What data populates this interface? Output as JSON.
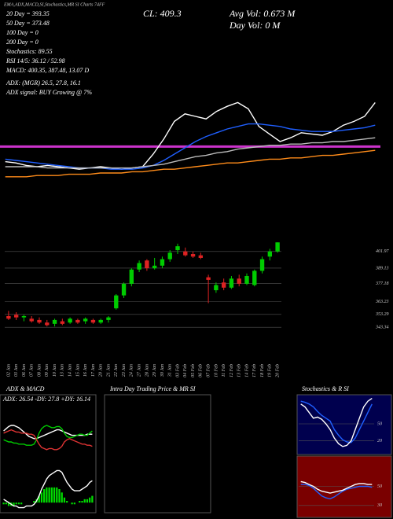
{
  "header": {
    "title_strip": "EMA,ADX,MACD,SI,Stochastics,MR SI Charts 74FF",
    "ema20": "20 Day = 393.35",
    "ema50": "50 Day = 373.48",
    "ema100": "100 Day = 0",
    "ema200": "200 Day = 0",
    "stochastics": "Stochastics: 89.55",
    "rsi": "RSI 14/5: 36.12 / 52.98",
    "macd": "MACD: 400.35, 387.48, 13.07 D",
    "adx": "ADX: (MGR) 26.5, 27.8, 16.1",
    "adx_signal": "ADX signal: BUY Growing @ 7%",
    "close": "CL: 409.3",
    "avg_vol": "Avg Vol: 0.673 M",
    "day_vol": "Day Vol: 0 M"
  },
  "panels": {
    "adx_macd": "ADX & MACD",
    "intraday": "Intra Day Trading Price & MR SI",
    "stoch_rsi": "Stochastics & R SI",
    "adx_values": "ADX: 26.54 -DY: 27.8 +DY: 16.14"
  },
  "chart_data": [
    {
      "type": "line",
      "ylim": [
        0,
        100
      ],
      "level": {
        "value": 46,
        "color": "#cc33cc"
      },
      "series": [
        {
          "color": "#ffffff",
          "values": [
            34,
            33,
            31,
            30,
            31,
            30,
            29,
            28,
            29,
            30,
            29,
            28,
            29,
            30,
            40,
            52,
            66,
            72,
            70,
            68,
            74,
            78,
            81,
            76,
            62,
            56,
            50,
            53,
            57,
            56,
            55,
            58,
            63,
            66,
            70,
            81
          ]
        },
        {
          "color": "#1f5fff",
          "values": [
            36,
            35,
            34,
            33,
            32,
            31,
            30,
            29,
            29,
            29,
            28,
            28,
            28,
            29,
            31,
            35,
            40,
            45,
            50,
            54,
            57,
            60,
            62,
            64,
            64,
            63,
            62,
            60,
            59,
            58,
            58,
            58,
            59,
            60,
            61,
            63
          ]
        },
        {
          "color": "#bbbbbb",
          "values": [
            30,
            30,
            30,
            30,
            29,
            29,
            29,
            29,
            29,
            29,
            29,
            29,
            29,
            30,
            31,
            32,
            34,
            36,
            38,
            39,
            41,
            42,
            44,
            45,
            46,
            47,
            47,
            48,
            48,
            49,
            49,
            50,
            50,
            51,
            52,
            53
          ]
        },
        {
          "color": "#ff8c1a",
          "values": [
            22,
            22,
            22,
            23,
            23,
            23,
            24,
            24,
            24,
            25,
            25,
            25,
            26,
            26,
            27,
            28,
            28,
            29,
            30,
            31,
            32,
            33,
            33,
            34,
            35,
            36,
            36,
            37,
            37,
            38,
            39,
            39,
            40,
            41,
            42,
            43
          ]
        }
      ]
    },
    {
      "type": "candlestick",
      "ylim": [
        338,
        414
      ],
      "up_color": "#00cc00",
      "down_color": "#dd2222",
      "yticks": [
        401.97,
        389.13,
        377.18,
        363.23,
        353.29,
        343.34
      ],
      "categories": [
        "02 Jan",
        "03 Jan",
        "06 Jan",
        "07 Jan",
        "08 Jan",
        "09 Jan",
        "10 Jan",
        "13 Jan",
        "14 Jan",
        "15 Jan",
        "16 Jan",
        "17 Jan",
        "20 Jan",
        "21 Jan",
        "22 Jan",
        "23 Jan",
        "24 Jan",
        "27 Jan",
        "28 Jan",
        "29 Jan",
        "30 Jan",
        "31 Jan",
        "03 Feb",
        "04 Feb",
        "05 Feb",
        "06 Feb",
        "07 Feb",
        "10 Feb",
        "11 Feb",
        "12 Feb",
        "13 Feb",
        "14 Feb",
        "17 Feb",
        "18 Feb",
        "19 Feb",
        "20 Feb"
      ],
      "open": [
        352,
        353,
        351,
        350,
        349,
        347,
        346,
        348,
        347,
        349,
        348,
        349,
        347,
        349,
        358,
        368,
        377,
        388,
        395,
        389,
        391,
        396,
        403,
        402,
        400,
        399,
        382,
        372,
        378,
        374,
        381,
        377,
        376,
        387,
        398,
        402
      ],
      "high": [
        356,
        355,
        353,
        352,
        351,
        349,
        350,
        350,
        351,
        350,
        351,
        350,
        350,
        352,
        369,
        378,
        389,
        395,
        396,
        397,
        398,
        403,
        408,
        405,
        402,
        401,
        384,
        378,
        381,
        383,
        384,
        385,
        388,
        398,
        404,
        409
      ],
      "low": [
        349,
        349,
        348,
        347,
        346,
        344,
        344,
        345,
        346,
        346,
        346,
        346,
        346,
        347,
        357,
        366,
        375,
        386,
        387,
        388,
        389,
        394,
        400,
        398,
        397,
        396,
        362,
        370,
        372,
        373,
        375,
        376,
        375,
        385,
        395,
        401
      ],
      "close": [
        350,
        351,
        352,
        348,
        347,
        345,
        349,
        346,
        350,
        347,
        350,
        347,
        349,
        351,
        368,
        377,
        388,
        393,
        389,
        391,
        396,
        401,
        406,
        399,
        398,
        397,
        380,
        376,
        374,
        381,
        377,
        383,
        387,
        396,
        402,
        409
      ]
    },
    {
      "type": "line",
      "ylim": [
        0,
        50
      ],
      "series": [
        {
          "color": "#ffffff",
          "values": [
            30,
            32,
            34,
            35,
            35,
            34,
            33,
            31,
            29,
            27,
            25,
            24,
            23,
            23,
            24,
            25,
            26,
            27,
            28,
            29,
            30,
            31,
            31,
            30,
            29,
            28,
            27,
            26,
            26,
            26,
            26,
            26,
            26,
            27,
            27,
            27
          ]
        },
        {
          "color": "#00cc00",
          "values": [
            22,
            21,
            20,
            20,
            19,
            19,
            18,
            18,
            18,
            17,
            17,
            17,
            18,
            22,
            28,
            32,
            34,
            35,
            34,
            33,
            33,
            34,
            34,
            32,
            28,
            25,
            24,
            24,
            25,
            26,
            27,
            27,
            26,
            26,
            28,
            30
          ]
        },
        {
          "color": "#dd3333",
          "values": [
            28,
            29,
            30,
            31,
            30,
            29,
            29,
            28,
            28,
            28,
            27,
            27,
            26,
            22,
            18,
            15,
            14,
            13,
            14,
            14,
            13,
            13,
            14,
            16,
            20,
            22,
            23,
            22,
            21,
            20,
            19,
            18,
            18,
            17,
            17,
            16
          ]
        }
      ]
    },
    {
      "type": "macd",
      "ylim": [
        -6,
        22
      ],
      "bar_color": "#00dd00",
      "histogram": [
        -1,
        -1,
        -2,
        -2,
        -2,
        -1,
        -1,
        -1,
        0,
        0,
        0,
        0,
        1,
        2,
        4,
        6,
        8,
        9,
        9,
        9,
        9,
        9,
        8,
        6,
        3,
        1,
        0,
        -1,
        -1,
        0,
        1,
        1,
        2,
        2,
        3,
        4
      ],
      "series": [
        {
          "color": "#ffffff",
          "values": [
            2,
            1,
            0,
            -1,
            -2,
            -2,
            -3,
            -3,
            -3,
            -2,
            -2,
            -2,
            -1,
            1,
            4,
            8,
            11,
            14,
            16,
            17,
            18,
            19,
            19,
            18,
            15,
            12,
            10,
            8,
            7,
            7,
            7,
            8,
            9,
            10,
            12,
            13
          ]
        }
      ]
    },
    {
      "type": "line",
      "ylim": [
        0,
        100
      ],
      "yticks": [
        20,
        50
      ],
      "series": [
        {
          "color": "#1f5fff",
          "values": [
            90,
            88,
            85,
            80,
            72,
            65,
            60,
            55,
            40,
            30,
            22,
            18,
            17,
            25,
            40,
            55,
            70,
            85
          ]
        },
        {
          "color": "#ffffff",
          "values": [
            85,
            80,
            70,
            60,
            62,
            58,
            50,
            40,
            25,
            15,
            10,
            12,
            20,
            40,
            60,
            80,
            90,
            95
          ]
        }
      ]
    },
    {
      "type": "line",
      "ylim": [
        20,
        80
      ],
      "yticks": [
        30,
        50
      ],
      "series": [
        {
          "color": "#1f5fff",
          "values": [
            52,
            52,
            51,
            48,
            44,
            40,
            38,
            37,
            39,
            42,
            45,
            47,
            48,
            49,
            50,
            50,
            50,
            49
          ]
        },
        {
          "color": "#ffffff",
          "values": [
            55,
            54,
            52,
            50,
            47,
            45,
            44,
            43,
            44,
            45,
            46,
            48,
            50,
            52,
            53,
            53,
            52,
            52
          ]
        }
      ]
    }
  ]
}
